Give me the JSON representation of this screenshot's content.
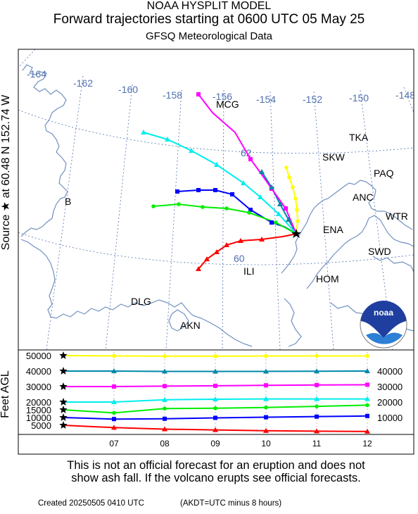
{
  "header": {
    "line1": "NOAA HYSPLIT MODEL",
    "line2": "Forward trajectories starting at 0600 UTC 05 May 25",
    "line3": "GFSQ Meteorological Data"
  },
  "source_label": "Source ★  at   60.48 N  152.74 W",
  "feet_label": "Feet AGL",
  "map": {
    "longitude_labels": [
      "-164",
      "-162",
      "-160",
      "-158",
      "-156",
      "-154",
      "-152",
      "-150",
      "-148"
    ],
    "latitude_labels": [
      "62",
      "60"
    ],
    "places": [
      "B",
      "MCG",
      "TKA",
      "SKW",
      "PAQ",
      "ANC",
      "WTR",
      "ENA",
      "SWD",
      "ILI",
      "HOM",
      "DLG",
      "AKN"
    ],
    "logo_text": "noaa",
    "colors": {
      "coast": "#7090c0",
      "grid": "#5070b0",
      "labels": "#5070b0"
    }
  },
  "trajectories": [
    {
      "color": "#ff0000",
      "marker": "triangle",
      "height_ft": 5000
    },
    {
      "color": "#0000ff",
      "marker": "square",
      "height_ft": 10000
    },
    {
      "color": "#00ee00",
      "marker": "circle",
      "height_ft": 15000
    },
    {
      "color": "#00eeee",
      "marker": "triangle",
      "height_ft": 20000
    },
    {
      "color": "#ff00ff",
      "marker": "square",
      "height_ft": 30000
    },
    {
      "color": "#0088aa",
      "marker": "triangle",
      "height_ft": 40000
    },
    {
      "color": "#ffff00",
      "marker": "circle",
      "height_ft": 50000
    }
  ],
  "chart_data": {
    "type": "line",
    "x": [
      6,
      7,
      8,
      9,
      10,
      11,
      12
    ],
    "xtick_labels": [
      "07",
      "08",
      "09",
      "10",
      "11",
      "12"
    ],
    "left_ytick_labels": [
      "5000",
      "10000",
      "15000",
      "20000",
      "30000",
      "40000",
      "50000"
    ],
    "right_ytick_labels": [
      "10000",
      "20000",
      "30000",
      "40000"
    ],
    "ylabel": "Feet AGL",
    "series": [
      {
        "values": [
          5000,
          3500,
          2500,
          2000,
          1500,
          1200,
          1000
        ]
      },
      {
        "values": [
          10000,
          9000,
          9200,
          9800,
          10200,
          10600,
          11000
        ]
      },
      {
        "values": [
          15000,
          13000,
          15800,
          16000,
          16500,
          17200,
          18000
        ]
      },
      {
        "values": [
          20000,
          20000,
          21500,
          21800,
          22000,
          22000,
          22000
        ]
      },
      {
        "values": [
          30000,
          30000,
          30300,
          30500,
          30800,
          31000,
          31200
        ]
      },
      {
        "values": [
          40000,
          40000,
          39800,
          39800,
          39800,
          39900,
          40000
        ]
      },
      {
        "values": [
          50000,
          49800,
          49600,
          49600,
          49700,
          49800,
          49800
        ]
      }
    ]
  },
  "disclaimer": {
    "line1": "This is not an official forecast for an eruption and does not",
    "line2": "show ash fall. If the volcano erupts see official forecasts."
  },
  "footer": {
    "created": "Created 20250505 0410 UTC",
    "timezone": "(AKDT=UTC minus 8 hours)"
  }
}
